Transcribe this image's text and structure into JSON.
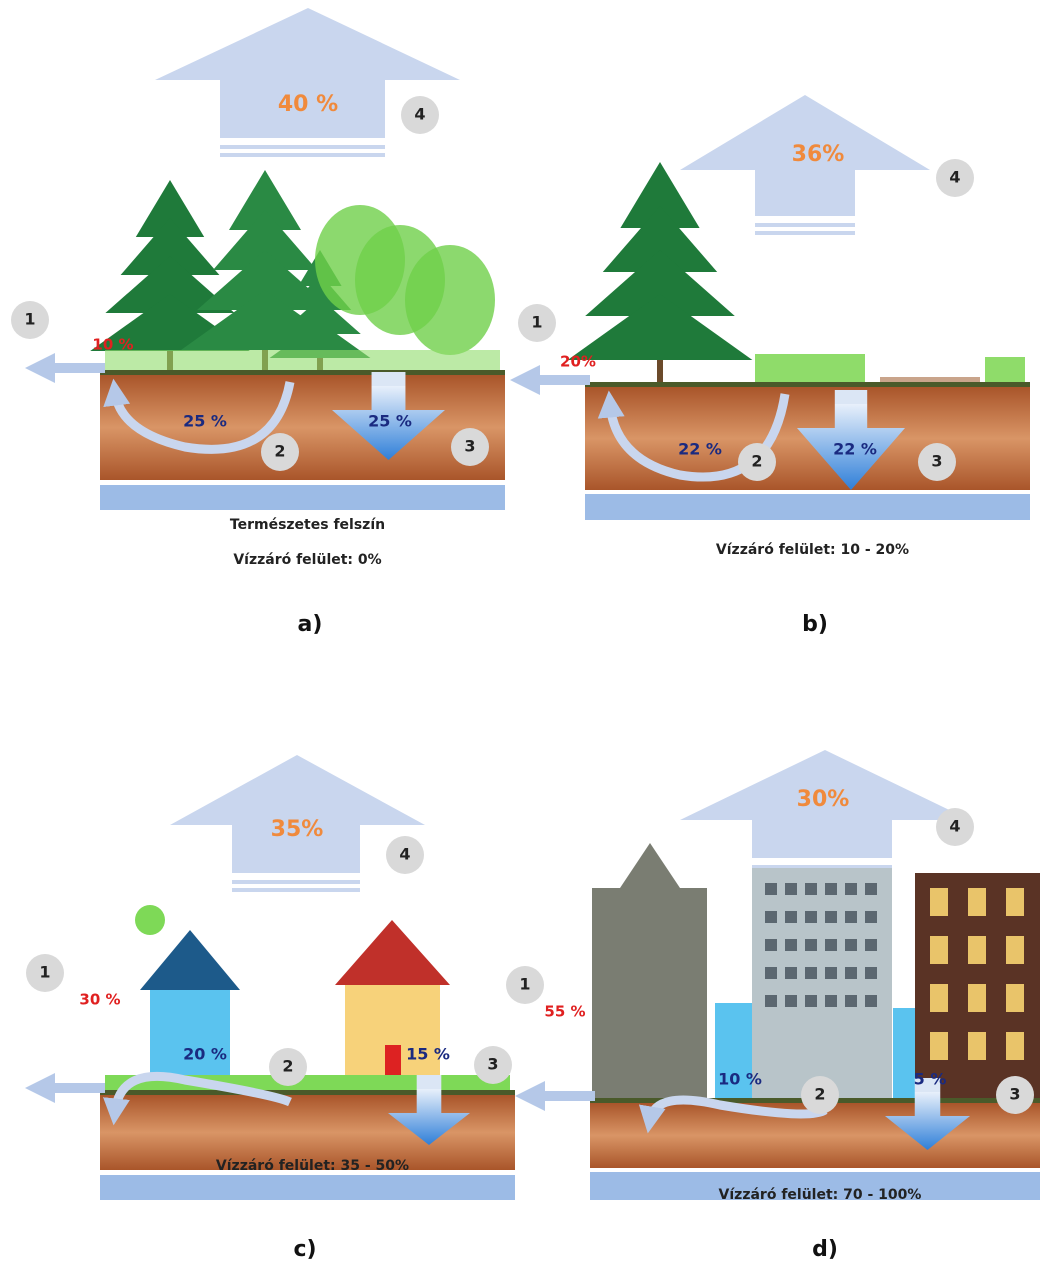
{
  "panels": [
    {
      "letter": "a)",
      "caption": [
        "Természetes felszín",
        "Vízzáró felület: 0%"
      ],
      "evaporation": "40 %",
      "runoff": "10 %",
      "shallow": "25 %",
      "deep": "25 %",
      "markers": [
        "1",
        "2",
        "3",
        "4"
      ]
    },
    {
      "letter": "b)",
      "caption": [
        "Vízzáró felület: 10 - 20%"
      ],
      "evaporation": "36%",
      "runoff": "20%",
      "shallow": "22 %",
      "deep": "22 %",
      "markers": [
        "1",
        "2",
        "3",
        "4"
      ]
    },
    {
      "letter": "c)",
      "caption": [
        "Vízzáró felület: 35 - 50%"
      ],
      "evaporation": "35%",
      "runoff": "30 %",
      "shallow": "20 %",
      "deep": "15 %",
      "markers": [
        "1",
        "2",
        "3",
        "4"
      ]
    },
    {
      "letter": "d)",
      "caption": [
        "Vízzáró felület: 70 - 100%"
      ],
      "evaporation": "30%",
      "runoff": "55 %",
      "shallow": "10 %",
      "deep": "5 %",
      "markers": [
        "1",
        "2",
        "3",
        "4"
      ]
    }
  ]
}
